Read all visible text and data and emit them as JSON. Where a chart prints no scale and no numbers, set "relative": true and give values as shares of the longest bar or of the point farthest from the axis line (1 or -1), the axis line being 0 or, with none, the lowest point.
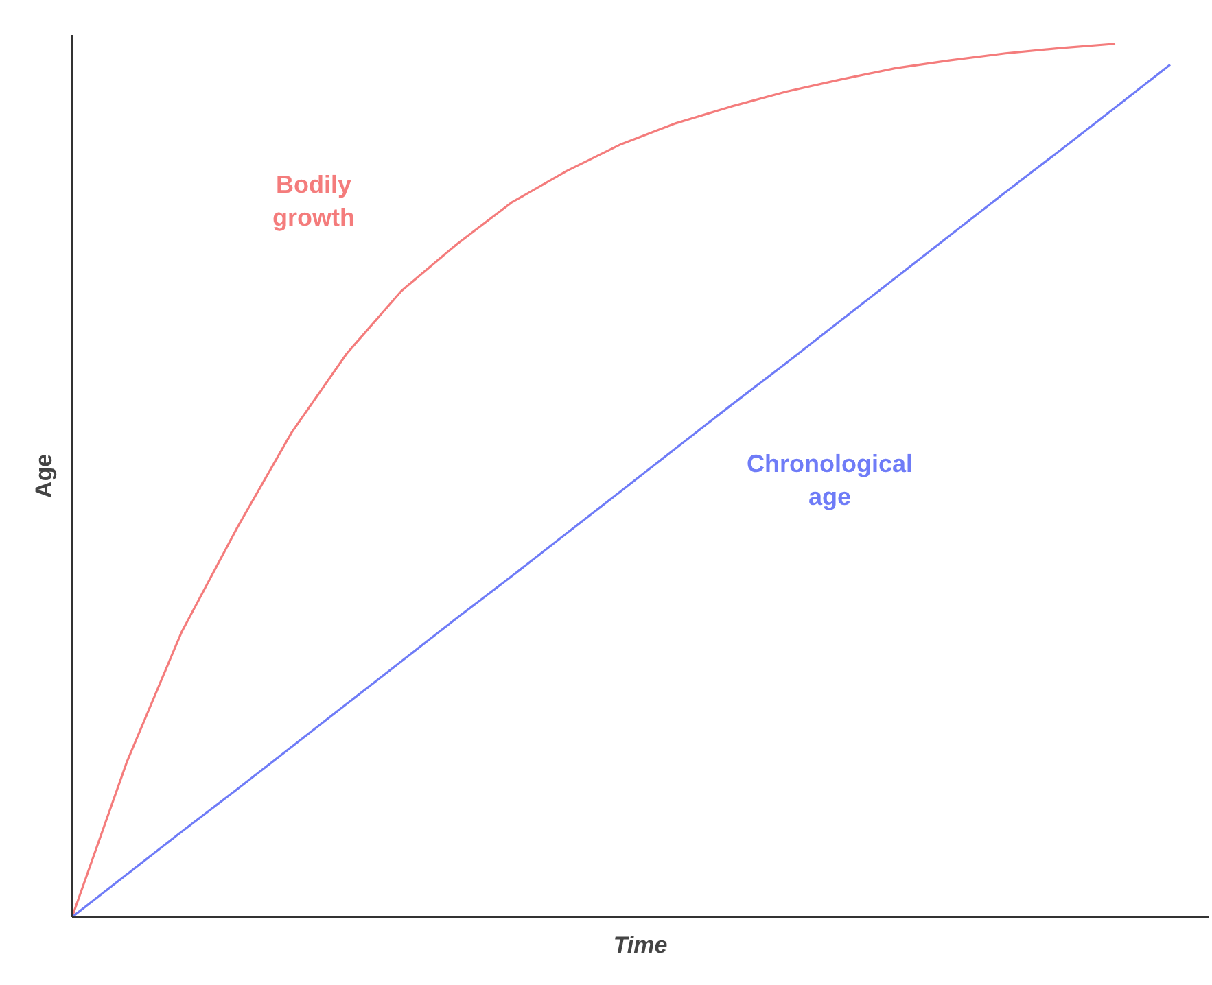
{
  "chart_data": {
    "type": "line",
    "relative": true,
    "xlabel": "Time",
    "ylabel": "Age",
    "categories": [
      null,
      null,
      null,
      null,
      null,
      null,
      null,
      null,
      null,
      null,
      null,
      null,
      null,
      null,
      null,
      null,
      null,
      null,
      null,
      null,
      null
    ],
    "series": [
      {
        "name": "Bodily growth",
        "color": "#f47c7c",
        "values": [
          0,
          0.178,
          0.327,
          0.445,
          0.555,
          0.645,
          0.717,
          0.77,
          0.818,
          0.854,
          0.885,
          0.909,
          0.928,
          0.945,
          0.959,
          0.972,
          0.981,
          0.989,
          0.995,
          1,
          null
        ]
      },
      {
        "name": "Chronological age",
        "color": "#6f7cf7",
        "values": [
          0,
          0.049,
          0.098,
          0.146,
          0.195,
          0.244,
          0.293,
          0.342,
          0.39,
          0.439,
          0.488,
          0.537,
          0.586,
          0.634,
          0.683,
          0.732,
          0.781,
          0.83,
          0.878,
          0.927,
          0.976
        ]
      }
    ]
  }
}
